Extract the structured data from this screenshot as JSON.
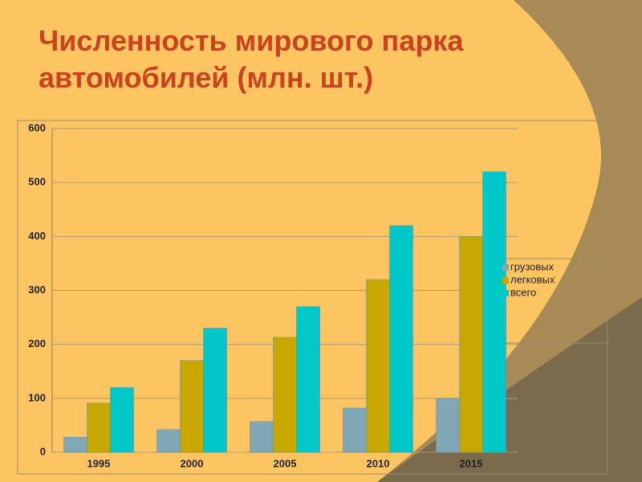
{
  "chart_data": {
    "type": "bar",
    "title": "Численность мирового парка автомобилей (млн. шт.)",
    "categories": [
      "1995",
      "2000",
      "2005",
      "2010",
      "2015"
    ],
    "series": [
      {
        "name": "грузовых",
        "color": "#7fa7b6",
        "values": [
          28,
          42,
          57,
          82,
          100
        ]
      },
      {
        "name": "легковых",
        "color": "#c8a800",
        "values": [
          91,
          170,
          213,
          320,
          400
        ]
      },
      {
        "name": "всего",
        "color": "#00c8c8",
        "values": [
          120,
          230,
          270,
          420,
          520
        ]
      }
    ],
    "ylim": [
      0,
      600
    ],
    "yticks": [
      0,
      100,
      200,
      300,
      400,
      500,
      600
    ],
    "grid": true,
    "legend": "right"
  }
}
